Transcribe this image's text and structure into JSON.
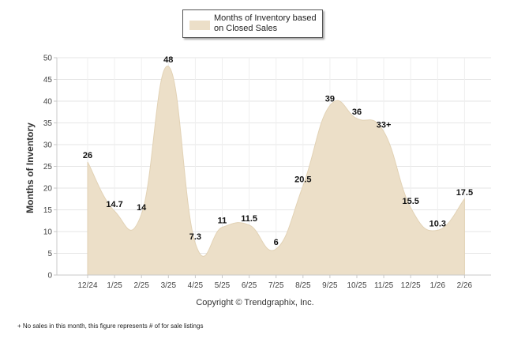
{
  "chart_data": {
    "type": "area",
    "title": "",
    "xlabel": "",
    "ylabel": "Months of Inventory",
    "legend": {
      "label": "Months of Inventory based on Closed Sales",
      "position": "top-center"
    },
    "categories": [
      "12/24",
      "1/25",
      "2/25",
      "3/25",
      "4/25",
      "5/25",
      "6/25",
      "7/25",
      "8/25",
      "9/25",
      "10/25",
      "11/25",
      "12/25",
      "1/26",
      "2/26"
    ],
    "values": [
      26,
      14.7,
      14,
      48,
      7.3,
      11,
      11.5,
      6,
      20.5,
      39,
      36,
      33,
      15.5,
      10.3,
      17.5
    ],
    "data_labels": [
      "26",
      "14.7",
      "14",
      "48",
      "7.3",
      "11",
      "11.5",
      "6",
      "20.5",
      "39",
      "36",
      "33+",
      "15.5",
      "10.3",
      "17.5"
    ],
    "ylim": [
      0,
      50
    ],
    "yticks": [
      0,
      5,
      10,
      15,
      20,
      25,
      30,
      35,
      40,
      45,
      50
    ],
    "grid": true,
    "fill_color": "#ecdfc8"
  },
  "copyright": "Copyright © Trendgraphix, Inc.",
  "footnote": "+ No sales in this month, this figure represents # of for sale listings"
}
